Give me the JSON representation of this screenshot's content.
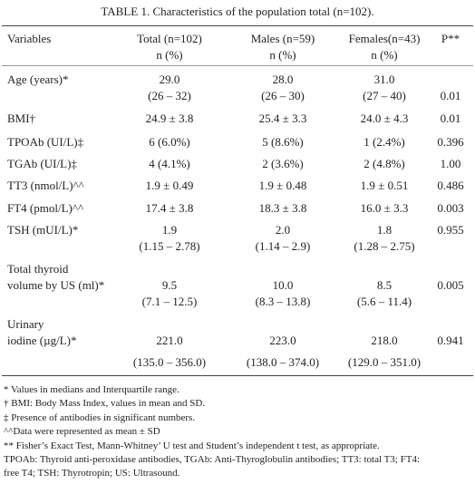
{
  "title": "TABLE 1. Characteristics of the population total (n=102).",
  "table": {
    "header": [
      [
        "Variables"
      ],
      [
        "Total (n=102)",
        "n (%)"
      ],
      [
        "Males (n=59)",
        "n (%)"
      ],
      [
        "Females(n=43)",
        "n (%)"
      ],
      [
        "P**"
      ]
    ],
    "rows": [
      [
        [
          "Age (years)*"
        ],
        [
          "29.0",
          "(26 – 32)"
        ],
        [
          "28.0",
          "(26 – 30)"
        ],
        [
          "31.0",
          "(27 – 40)"
        ],
        [
          "0.01"
        ]
      ],
      [
        [
          "BMI†"
        ],
        [
          "24.9 ± 3.8"
        ],
        [
          "25.4 ± 3.3"
        ],
        [
          "24.0 ± 4.3"
        ],
        [
          "0.01"
        ]
      ],
      [
        [
          "TPOAb (UI/L)‡"
        ],
        [
          "6 (6.0%)"
        ],
        [
          "5 (8.6%)"
        ],
        [
          "1 (2.4%)"
        ],
        [
          "0.396"
        ]
      ],
      [
        [
          "TGAb (UI/L)‡"
        ],
        [
          "4 (4.1%)"
        ],
        [
          "2 (3.6%)"
        ],
        [
          "2 (4.8%)"
        ],
        [
          "1.00"
        ]
      ],
      [
        [
          "TT3 (nmol/L)^^"
        ],
        [
          "1.9 ± 0.49"
        ],
        [
          "1.9 ± 0.48"
        ],
        [
          "1.9 ± 0.51"
        ],
        [
          "0.486"
        ]
      ],
      [
        [
          "FT4 (pmol/L)^^"
        ],
        [
          "17.4 ± 3.8"
        ],
        [
          "18.3 ± 3.8"
        ],
        [
          "16.0 ± 3.3"
        ],
        [
          "0.003"
        ]
      ],
      [
        [
          "TSH (mUI/L)*"
        ],
        [
          "1.9",
          "(1.15 – 2.78)"
        ],
        [
          "2.0",
          "(1.14 – 2.9)"
        ],
        [
          "1.8",
          "(1.28 – 2.75)"
        ],
        [
          "0.955"
        ]
      ],
      [
        [
          "Total thyroid",
          "volume by US (ml)*"
        ],
        [
          "9.5",
          "(7.1 – 12.5)"
        ],
        [
          "10.0",
          "(8.3 – 13.8)"
        ],
        [
          "8.5",
          "(5.6 – 11.4)"
        ],
        [
          "0.005"
        ]
      ],
      [
        [
          "Urinary",
          "iodine (µg/L)*"
        ],
        [
          "221.0",
          "(135.0 – 356.0)"
        ],
        [
          "223.0",
          "(138.0 – 374.0)"
        ],
        [
          "218.0",
          "(129.0 – 351.0)"
        ],
        [
          "0.941"
        ]
      ]
    ]
  },
  "footnotes": [
    "* Values in medians and Interquartile range.",
    "† BMI: Body Mass Index, values in mean and SD.",
    "‡ Presence of antibodies in significant numbers.",
    "^^Data were represented as mean ± SD",
    "** Fisher’s Exact Test, Mann-Whitney’ U test and Student’s independent t test, as appropriate.",
    "TPOAb: Thyroid anti-peroxidase antibodies, TGAb: Anti-Thyroglobulin antibodies; TT3: total T3; FT4:",
    "free T4; TSH: Thyrotropin; US: Ultrasound."
  ]
}
